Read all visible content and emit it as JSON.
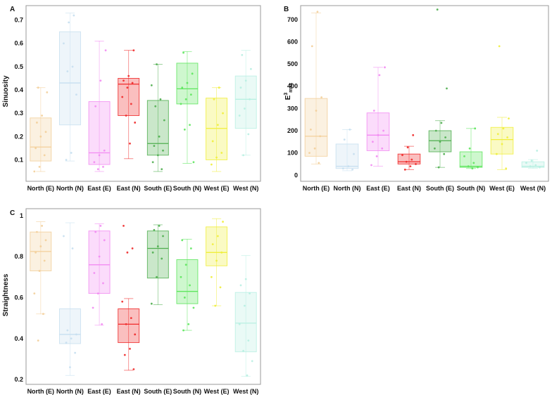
{
  "colors": {
    "North (E)": "#f3cf9a",
    "North (N)": "#c6dff0",
    "East (E)": "#f28bf2",
    "East (N)": "#f02a2a",
    "South (E)": "#4fae4f",
    "South (N)": "#5ee65e",
    "West (E)": "#f0ee3c",
    "West (N)": "#b8f0e2"
  },
  "chart_data": [
    {
      "type": "box",
      "panel": "A",
      "ylabel": "Sinuosity",
      "xlabel": "",
      "ylim": [
        0.02,
        0.75
      ],
      "yticks": [
        "0.1",
        "0.2",
        "0.3",
        "0.4",
        "0.5",
        "0.6",
        "0.7"
      ],
      "categories": [
        "North (E)",
        "North (N)",
        "East (E)",
        "East (N)",
        "South (E)",
        "South (N)",
        "West (E)",
        "West (N)"
      ],
      "boxes": [
        {
          "min": 0.05,
          "q1": 0.095,
          "median": 0.155,
          "q3": 0.28,
          "max": 0.41
        },
        {
          "min": 0.095,
          "q1": 0.25,
          "median": 0.43,
          "q3": 0.65,
          "max": 0.73
        },
        {
          "min": 0.05,
          "q1": 0.08,
          "median": 0.13,
          "q3": 0.35,
          "max": 0.61
        },
        {
          "min": 0.105,
          "q1": 0.29,
          "median": 0.425,
          "q3": 0.45,
          "max": 0.57
        },
        {
          "min": 0.05,
          "q1": 0.12,
          "median": 0.17,
          "q3": 0.355,
          "max": 0.51
        },
        {
          "min": 0.085,
          "q1": 0.34,
          "median": 0.405,
          "q3": 0.515,
          "max": 0.565
        },
        {
          "min": 0.05,
          "q1": 0.1,
          "median": 0.235,
          "q3": 0.365,
          "max": 0.41
        },
        {
          "min": 0.12,
          "q1": 0.235,
          "median": 0.36,
          "q3": 0.46,
          "max": 0.57
        }
      ],
      "points": [
        [
          0.05,
          0.07,
          0.12,
          0.15,
          0.2,
          0.22,
          0.26,
          0.29,
          0.39,
          0.41
        ],
        [
          0.1,
          0.13,
          0.38,
          0.48,
          0.5,
          0.6,
          0.69,
          0.72
        ],
        [
          0.06,
          0.07,
          0.09,
          0.12,
          0.14,
          0.33,
          0.44,
          0.57
        ],
        [
          0.17,
          0.26,
          0.29,
          0.34,
          0.37,
          0.41,
          0.43,
          0.44,
          0.46,
          0.57
        ],
        [
          0.06,
          0.09,
          0.12,
          0.14,
          0.16,
          0.2,
          0.27,
          0.33,
          0.36,
          0.42,
          0.51
        ],
        [
          0.09,
          0.23,
          0.25,
          0.34,
          0.36,
          0.38,
          0.41,
          0.43,
          0.47,
          0.56
        ],
        [
          0.08,
          0.11,
          0.13,
          0.18,
          0.25,
          0.3,
          0.36,
          0.41
        ],
        [
          0.12,
          0.21,
          0.29,
          0.32,
          0.36,
          0.41,
          0.44,
          0.49,
          0.55
        ]
      ]
    },
    {
      "type": "box",
      "panel": "B",
      "ylabel_main": "E",
      "ylabel_super": "3",
      "ylabel_sub": "max",
      "xlabel": "",
      "ylim": [
        -15,
        750
      ],
      "yticks": [
        "0",
        "100",
        "200",
        "300",
        "400",
        "500",
        "600",
        "700"
      ],
      "categories": [
        "North (E)",
        "North (N)",
        "East (E)",
        "East (N)",
        "South (E)",
        "South (N)",
        "West (E)",
        "West (N)"
      ],
      "boxes": [
        {
          "min": 50,
          "q1": 85,
          "median": 175,
          "q3": 345,
          "max": 730
        },
        {
          "min": 20,
          "q1": 30,
          "median": 40,
          "q3": 140,
          "max": 205
        },
        {
          "min": 40,
          "q1": 110,
          "median": 180,
          "q3": 280,
          "max": 485
        },
        {
          "min": 25,
          "q1": 50,
          "median": 60,
          "q3": 95,
          "max": 130
        },
        {
          "min": 35,
          "q1": 105,
          "median": 155,
          "q3": 200,
          "max": 245
        },
        {
          "min": 30,
          "q1": 35,
          "median": 40,
          "q3": 105,
          "max": 210
        },
        {
          "min": 25,
          "q1": 95,
          "median": 160,
          "q3": 215,
          "max": 260
        },
        {
          "min": 30,
          "q1": 35,
          "median": 40,
          "q3": 60,
          "max": 70
        }
      ],
      "points": [
        [
          55,
          100,
          120,
          175,
          205,
          290,
          350,
          580,
          735
        ],
        [
          25,
          30,
          40,
          95,
          160,
          205
        ],
        [
          45,
          85,
          120,
          150,
          180,
          200,
          290,
          450,
          485
        ],
        [
          25,
          40,
          50,
          60,
          70,
          90,
          125,
          180
        ],
        [
          35,
          95,
          120,
          150,
          170,
          200,
          235,
          390,
          745
        ],
        [
          30,
          35,
          40,
          55,
          85,
          120,
          210
        ],
        [
          30,
          95,
          140,
          170,
          185,
          210,
          255,
          580
        ],
        [
          35,
          40,
          45,
          55,
          65,
          110
        ]
      ]
    },
    {
      "type": "box",
      "panel": "C",
      "ylabel": "Straightness",
      "xlabel": "",
      "ylim": [
        0.19,
        1.02
      ],
      "yticks": [
        "0.2",
        "0.4",
        "0.6",
        "0.8",
        "1"
      ],
      "categories": [
        "North (E)",
        "North (N)",
        "East (E)",
        "East (N)",
        "South (E)",
        "South (N)",
        "West (E)",
        "West (N)"
      ],
      "boxes": [
        {
          "min": 0.52,
          "q1": 0.73,
          "median": 0.825,
          "q3": 0.92,
          "max": 0.97
        },
        {
          "min": 0.22,
          "q1": 0.375,
          "median": 0.42,
          "q3": 0.545,
          "max": 0.965
        },
        {
          "min": 0.465,
          "q1": 0.62,
          "median": 0.76,
          "q3": 0.925,
          "max": 0.96
        },
        {
          "min": 0.245,
          "q1": 0.38,
          "median": 0.47,
          "q3": 0.545,
          "max": 0.595
        },
        {
          "min": 0.565,
          "q1": 0.695,
          "median": 0.84,
          "q3": 0.925,
          "max": 0.955
        },
        {
          "min": 0.44,
          "q1": 0.57,
          "median": 0.63,
          "q3": 0.785,
          "max": 0.885
        },
        {
          "min": 0.56,
          "q1": 0.755,
          "median": 0.82,
          "q3": 0.945,
          "max": 0.985
        },
        {
          "min": 0.215,
          "q1": 0.335,
          "median": 0.475,
          "q3": 0.625,
          "max": 0.805
        }
      ],
      "points": [
        [
          0.39,
          0.52,
          0.62,
          0.73,
          0.78,
          0.82,
          0.85,
          0.88,
          0.92,
          0.95
        ],
        [
          0.26,
          0.33,
          0.38,
          0.4,
          0.42,
          0.44,
          0.84,
          0.9
        ],
        [
          0.47,
          0.55,
          0.62,
          0.67,
          0.72,
          0.8,
          0.88,
          0.92,
          0.95
        ],
        [
          0.25,
          0.32,
          0.35,
          0.42,
          0.47,
          0.5,
          0.58,
          0.82,
          0.84,
          0.95
        ],
        [
          0.57,
          0.7,
          0.79,
          0.82,
          0.85,
          0.9,
          0.93,
          0.95
        ],
        [
          0.44,
          0.47,
          0.55,
          0.6,
          0.66,
          0.7,
          0.76,
          0.84,
          0.88
        ],
        [
          0.56,
          0.65,
          0.7,
          0.78,
          0.82,
          0.86,
          0.9,
          0.97
        ],
        [
          0.22,
          0.29,
          0.34,
          0.39,
          0.47,
          0.56,
          0.62,
          0.66,
          0.69
        ]
      ]
    }
  ]
}
